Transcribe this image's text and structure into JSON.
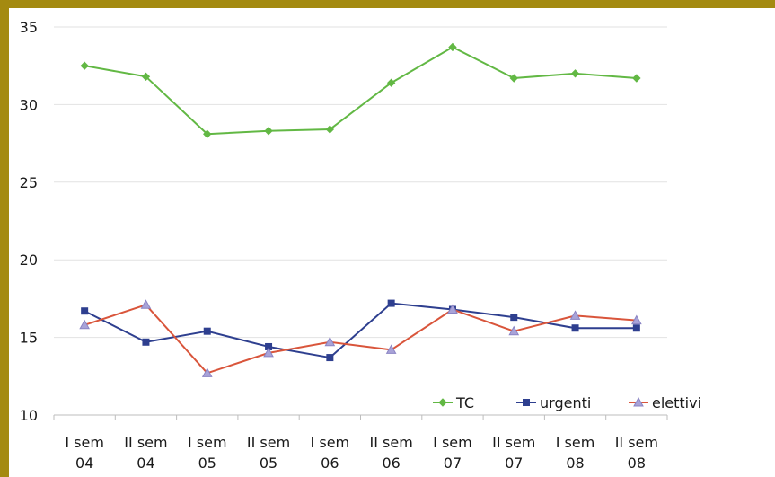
{
  "chart_data": {
    "type": "line",
    "categories": [
      [
        "I sem",
        "04"
      ],
      [
        "II sem",
        "04"
      ],
      [
        "I sem",
        "05"
      ],
      [
        "II sem",
        "05"
      ],
      [
        "I sem",
        "06"
      ],
      [
        "II sem",
        "06"
      ],
      [
        "I sem",
        "07"
      ],
      [
        "II sem",
        "07"
      ],
      [
        "I sem",
        "08"
      ],
      [
        "II sem",
        "08"
      ]
    ],
    "ylim": [
      10,
      35
    ],
    "yticks": [
      10,
      15,
      20,
      25,
      30,
      35
    ],
    "grid": true,
    "legend": "bottom-right",
    "series": [
      {
        "name": "TC",
        "color": "#62b844",
        "marker": "diamond",
        "values": [
          32.5,
          31.8,
          28.1,
          28.3,
          28.4,
          31.4,
          33.7,
          31.7,
          32.0,
          31.7
        ]
      },
      {
        "name": "urgenti",
        "color": "#2e3f8f",
        "marker": "square",
        "values": [
          16.7,
          14.7,
          15.4,
          14.4,
          13.7,
          17.2,
          16.8,
          16.3,
          15.6,
          15.6
        ]
      },
      {
        "name": "elettivi",
        "color": "#d9553b",
        "marker": "triangle",
        "values": [
          15.8,
          17.1,
          12.7,
          14.0,
          14.7,
          14.2,
          16.8,
          15.4,
          16.4,
          16.1
        ]
      }
    ]
  }
}
